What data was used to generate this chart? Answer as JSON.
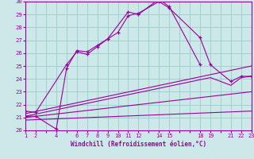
{
  "xlabel": "Windchill (Refroidissement éolien,°C)",
  "bg_color": "#cce8e8",
  "grid_color": "#99cccc",
  "line_color": "#990099",
  "ylim": [
    20,
    30
  ],
  "xlim": [
    1,
    23
  ],
  "yticks": [
    20,
    21,
    22,
    23,
    24,
    25,
    26,
    27,
    28,
    29,
    30
  ],
  "xtick_labels": [
    "1",
    "2",
    "",
    "4",
    "",
    "6",
    "7",
    "8",
    "9",
    "10",
    "11",
    "12",
    "",
    "14",
    "15",
    "",
    "",
    "18",
    "19",
    "",
    "21",
    "22",
    "23"
  ],
  "xtick_positions": [
    1,
    2,
    3,
    4,
    5,
    6,
    7,
    8,
    9,
    10,
    11,
    12,
    13,
    14,
    15,
    16,
    17,
    18,
    19,
    20,
    21,
    22,
    23
  ],
  "series1_x": [
    1,
    2,
    4,
    5,
    6,
    7,
    8,
    9,
    11,
    12,
    14,
    15,
    18
  ],
  "series1_y": [
    21.1,
    21.1,
    20.1,
    24.8,
    26.2,
    26.1,
    26.6,
    27.1,
    29.2,
    29.0,
    30.2,
    29.6,
    25.1
  ],
  "series2_x": [
    1,
    2,
    5,
    6,
    7,
    8,
    9,
    10,
    11,
    12,
    14,
    15,
    18,
    19,
    21,
    22,
    23
  ],
  "series2_y": [
    21.5,
    21.4,
    25.1,
    26.1,
    25.9,
    26.5,
    27.1,
    27.6,
    28.9,
    29.1,
    30.0,
    29.5,
    27.2,
    25.1,
    23.8,
    24.2,
    24.2
  ],
  "line1_x": [
    1,
    23
  ],
  "line1_y": [
    21.3,
    25.0
  ],
  "line2_x": [
    1,
    19,
    21,
    22,
    23
  ],
  "line2_y": [
    21.1,
    24.1,
    23.5,
    24.1,
    24.2
  ],
  "line3_x": [
    1,
    23
  ],
  "line3_y": [
    21.0,
    23.0
  ],
  "line4_x": [
    1,
    23
  ],
  "line4_y": [
    20.8,
    21.5
  ]
}
